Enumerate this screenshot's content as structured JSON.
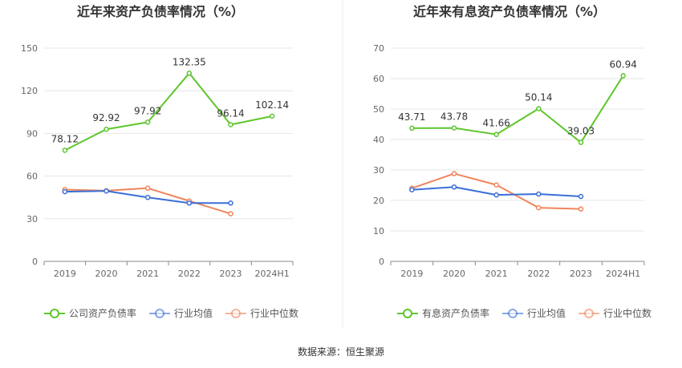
{
  "footer": {
    "source": "数据来源：恒生聚源"
  },
  "colors": {
    "green": "#5ec62c",
    "blue": "#3a6fd8",
    "orange": "#f0845c",
    "grid": "#e6e6e6",
    "axis": "#888888"
  },
  "chart_data": [
    {
      "type": "line",
      "title": "近年来资产负债率情况（%）",
      "categories": [
        "2019",
        "2020",
        "2021",
        "2022",
        "2023",
        "2024H1"
      ],
      "ylim": [
        0,
        150
      ],
      "yticks": [
        0,
        30,
        60,
        90,
        120,
        150
      ],
      "grid": true,
      "legend_position": "bottom",
      "series": [
        {
          "name": "公司资产负债率",
          "color": "#5ec62c",
          "labeled": true,
          "values": [
            78.12,
            92.92,
            97.92,
            132.35,
            96.14,
            102.14
          ]
        },
        {
          "name": "行业均值",
          "color": "#3a6fd8",
          "labeled": false,
          "values": [
            49,
            49.5,
            45,
            41,
            41,
            null
          ]
        },
        {
          "name": "行业中位数",
          "color": "#f0845c",
          "labeled": false,
          "values": [
            50.5,
            49.7,
            51.5,
            42.5,
            33.5,
            null
          ]
        }
      ],
      "data_labels": [
        "78.12",
        "92.92",
        "97.92",
        "132.35",
        "96.14",
        "102.14"
      ]
    },
    {
      "type": "line",
      "title": "近年来有息资产负债率情况（%）",
      "categories": [
        "2019",
        "2020",
        "2021",
        "2022",
        "2023",
        "2024H1"
      ],
      "ylim": [
        0,
        70
      ],
      "yticks": [
        0,
        10,
        20,
        30,
        40,
        50,
        60,
        70
      ],
      "grid": true,
      "legend_position": "bottom",
      "series": [
        {
          "name": "有息资产负债率",
          "color": "#5ec62c",
          "labeled": true,
          "values": [
            43.71,
            43.78,
            41.66,
            50.14,
            39.03,
            60.94
          ]
        },
        {
          "name": "行业均值",
          "color": "#3a6fd8",
          "labeled": false,
          "values": [
            23.5,
            24.4,
            21.8,
            22.1,
            21.3,
            null
          ]
        },
        {
          "name": "行业中位数",
          "color": "#f0845c",
          "labeled": false,
          "values": [
            24,
            28.8,
            25.1,
            17.6,
            17.2,
            null
          ]
        }
      ],
      "data_labels": [
        "43.71",
        "43.78",
        "41.66",
        "50.14",
        "39.03",
        "60.94"
      ]
    }
  ]
}
